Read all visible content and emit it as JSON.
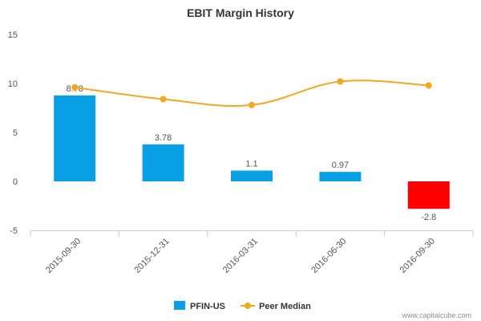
{
  "chart_data": {
    "type": "bar",
    "title": "EBIT Margin History",
    "categories": [
      "2015-09-30",
      "2015-12-31",
      "2016-03-31",
      "2016-06-30",
      "2016-09-30"
    ],
    "series": [
      {
        "name": "PFIN-US",
        "type": "bar",
        "values": [
          8.78,
          3.78,
          1.1,
          0.97,
          -2.8
        ],
        "labels": [
          "8.78",
          "3.78",
          "1.1",
          "0.97",
          "-2.8"
        ],
        "color": "#0aa0e6",
        "negative_color": "#ff0000"
      },
      {
        "name": "Peer Median",
        "type": "line",
        "values": [
          9.6,
          8.4,
          7.8,
          10.2,
          9.8
        ],
        "color": "#f5a623"
      }
    ],
    "y_ticks": [
      "15",
      "10",
      "5",
      "0",
      "-5"
    ],
    "ylim": [
      -5,
      15
    ],
    "xlabel": "",
    "ylabel": "",
    "grid": false,
    "legend_position": "bottom"
  },
  "credit": "www.capitalcube.com"
}
